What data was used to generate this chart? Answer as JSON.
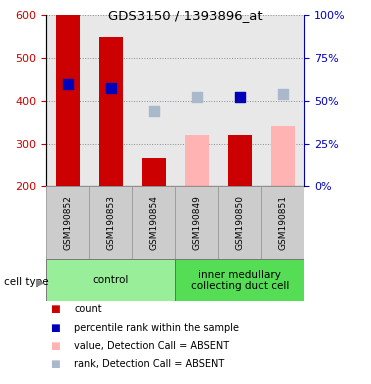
{
  "title": "GDS3150 / 1393896_at",
  "samples": [
    "GSM190852",
    "GSM190853",
    "GSM190854",
    "GSM190849",
    "GSM190850",
    "GSM190851"
  ],
  "count_values": [
    600,
    550,
    265,
    null,
    320,
    null
  ],
  "count_values_absent": [
    null,
    null,
    null,
    320,
    null,
    340
  ],
  "percentile_present": [
    440,
    430,
    null,
    null,
    410,
    null
  ],
  "percentile_absent": [
    null,
    null,
    375,
    410,
    null,
    415
  ],
  "bar_bottom": 200,
  "ylim_left": [
    200,
    600
  ],
  "ylim_right": [
    0,
    100
  ],
  "yticks_left": [
    200,
    300,
    400,
    500,
    600
  ],
  "yticks_right": [
    0,
    25,
    50,
    75,
    100
  ],
  "groups": [
    {
      "label": "control",
      "start": 0,
      "end": 3,
      "color": "#99ee99"
    },
    {
      "label": "inner medullary\ncollecting duct cell",
      "start": 3,
      "end": 6,
      "color": "#55dd55"
    }
  ],
  "color_red": "#cc0000",
  "color_pink": "#ffb3b3",
  "color_blue": "#0000bb",
  "color_lightblue": "#aab8cc",
  "color_axis_red": "#cc0000",
  "color_axis_blue": "#0000bb",
  "bar_width": 0.55,
  "dot_size": 55,
  "sample_bg_color": "#cccccc"
}
